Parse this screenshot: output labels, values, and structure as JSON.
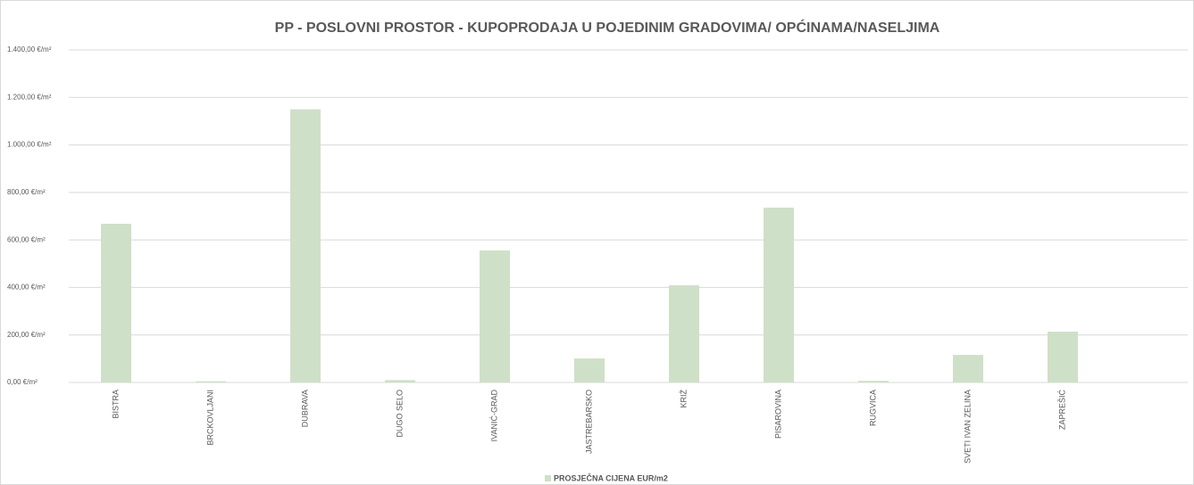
{
  "chart_data": {
    "type": "bar",
    "title": "PP - POSLOVNI PROSTOR - KUPOPRODAJA U POJEDINIM GRADOVIMA/ OPĆINAMA/NASELJIMA",
    "categories": [
      "BISTRA",
      "BRCKOVLJANI",
      "DUBRAVA",
      "DUGO SELO",
      "IVANIĆ-GRAD",
      "JASTREBARSKO",
      "KRIŽ",
      "PISAROVINA",
      "RUGVICA",
      "SVETI IVAN ZELINA",
      "ZAPREŠIĆ"
    ],
    "series": [
      {
        "name": "PROSJEČNA CIJENA EUR/m2",
        "color": "#cfe0c8",
        "values": [
          668,
          5,
          1150,
          10,
          556,
          101,
          409,
          736,
          7,
          116,
          214
        ]
      }
    ],
    "ylim": [
      0,
      1400
    ],
    "yticks": [
      {
        "value": 0,
        "label": "0,00 €/m²"
      },
      {
        "value": 200,
        "label": "200,00 €/m²"
      },
      {
        "value": 400,
        "label": "400,00 €/m²"
      },
      {
        "value": 600,
        "label": "600,00 €/m²"
      },
      {
        "value": 800,
        "label": "800,00 €/m²"
      },
      {
        "value": 1000,
        "label": "1.000,00 €/m²"
      },
      {
        "value": 1200,
        "label": "1.200,00 €/m²"
      },
      {
        "value": 1400,
        "label": "1.400,00 €/m²"
      }
    ],
    "grid": true,
    "legend": "bottom"
  }
}
